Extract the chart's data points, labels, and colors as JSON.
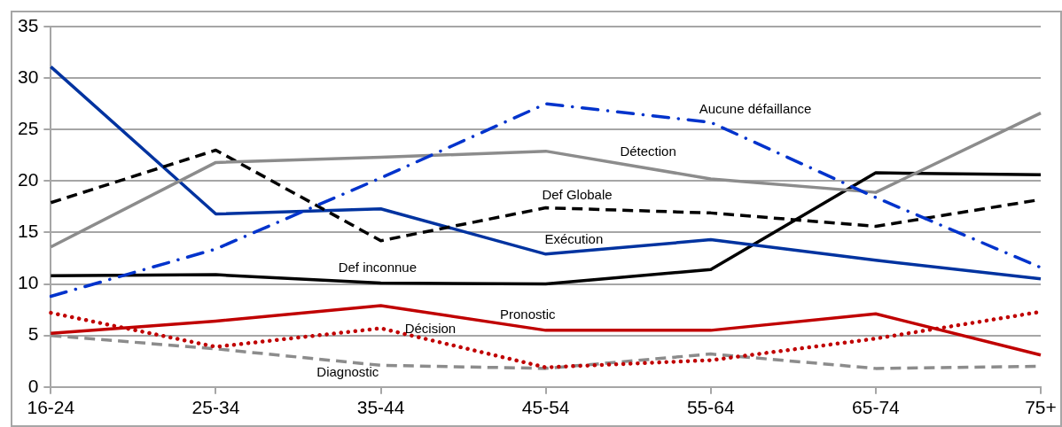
{
  "chart_data": {
    "type": "line",
    "categories": [
      "16-24",
      "25-34",
      "35-44",
      "45-54",
      "55-64",
      "65-74",
      "75+"
    ],
    "ylim": [
      0,
      35
    ],
    "yticks": [
      0,
      5,
      10,
      15,
      20,
      25,
      30,
      35
    ],
    "grid": "y",
    "legend": false,
    "marker": "none",
    "series": [
      {
        "name": "Aucune défaillance",
        "color": "#0033cc",
        "line_style": "dashdot",
        "values": [
          8.8,
          13.4,
          20.3,
          27.5,
          25.7,
          18.4,
          11.6
        ]
      },
      {
        "name": "Détection",
        "color": "#8c8c8c",
        "line_style": "solid",
        "values": [
          13.6,
          21.8,
          22.3,
          22.9,
          20.2,
          18.9,
          26.6
        ]
      },
      {
        "name": "Def Globale",
        "color": "#000000",
        "line_style": "dashed",
        "values": [
          17.9,
          23.0,
          14.2,
          17.4,
          16.9,
          15.6,
          18.2
        ]
      },
      {
        "name": "Exécution",
        "color": "#0033a0",
        "line_style": "solid",
        "values": [
          31.1,
          16.8,
          17.3,
          12.9,
          14.3,
          12.3,
          10.5
        ]
      },
      {
        "name": "Def inconnue",
        "color": "#000000",
        "line_style": "solid",
        "values": [
          10.8,
          10.9,
          10.1,
          10.0,
          11.4,
          20.8,
          20.6
        ]
      },
      {
        "name": "Pronostic",
        "color": "#c00000",
        "line_style": "solid",
        "values": [
          5.2,
          6.4,
          7.9,
          5.5,
          5.5,
          7.1,
          3.1
        ]
      },
      {
        "name": "Décision",
        "color": "#c00000",
        "line_style": "dotted",
        "values": [
          7.2,
          3.9,
          5.7,
          1.9,
          2.6,
          4.7,
          7.3
        ]
      },
      {
        "name": "Diagnostic",
        "color": "#8c8c8c",
        "line_style": "dashed",
        "values": [
          5.0,
          3.7,
          2.1,
          1.8,
          3.2,
          1.8,
          2.0
        ]
      }
    ]
  }
}
